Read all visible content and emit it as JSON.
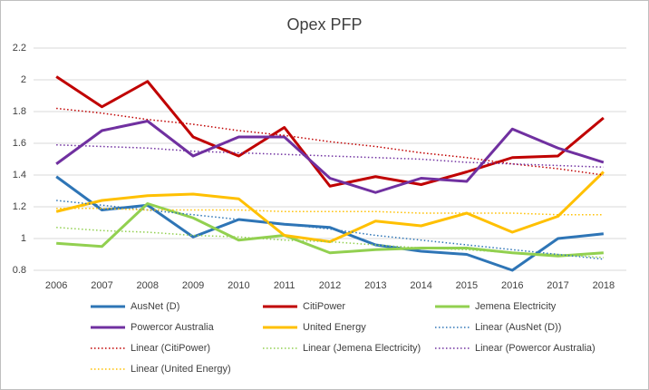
{
  "chart_data": {
    "type": "line",
    "title": "Opex PFP",
    "categories": [
      "2006",
      "2007",
      "2008",
      "2009",
      "2010",
      "2011",
      "2012",
      "2013",
      "2014",
      "2015",
      "2016",
      "2017",
      "2018"
    ],
    "ylim": [
      0.8,
      2.2
    ],
    "yticks": [
      0.8,
      1,
      1.2,
      1.4,
      1.6,
      1.8,
      2,
      2.2
    ],
    "grid": true,
    "legend": "bottom",
    "series": [
      {
        "name": "AusNet (D)",
        "color": "#2e75b6",
        "dash": "solid",
        "values": [
          1.39,
          1.18,
          1.21,
          1.01,
          1.12,
          1.09,
          1.07,
          0.96,
          0.92,
          0.9,
          0.8,
          1.0,
          1.03
        ]
      },
      {
        "name": "CitiPower",
        "color": "#c00000",
        "dash": "solid",
        "values": [
          2.02,
          1.83,
          1.99,
          1.64,
          1.52,
          1.7,
          1.33,
          1.39,
          1.34,
          1.42,
          1.51,
          1.52,
          1.76
        ]
      },
      {
        "name": "Jemena Electricity",
        "color": "#92d050",
        "dash": "solid",
        "values": [
          0.97,
          0.95,
          1.22,
          1.13,
          0.99,
          1.02,
          0.91,
          0.93,
          0.94,
          0.94,
          0.91,
          0.89,
          0.91
        ]
      },
      {
        "name": "Powercor Australia",
        "color": "#7030a0",
        "dash": "solid",
        "values": [
          1.47,
          1.68,
          1.74,
          1.52,
          1.64,
          1.64,
          1.38,
          1.29,
          1.38,
          1.36,
          1.69,
          1.57,
          1.48
        ]
      },
      {
        "name": "United Energy",
        "color": "#ffc000",
        "dash": "solid",
        "values": [
          1.17,
          1.24,
          1.27,
          1.28,
          1.25,
          1.02,
          0.98,
          1.11,
          1.08,
          1.16,
          1.04,
          1.14,
          1.42
        ]
      },
      {
        "name": "Linear (AusNet (D))",
        "color": "#2e75b6",
        "dash": "dotted",
        "values": [
          1.24,
          1.21,
          1.18,
          1.15,
          1.12,
          1.09,
          1.06,
          1.02,
          0.99,
          0.96,
          0.93,
          0.9,
          0.87
        ]
      },
      {
        "name": "Linear (CitiPower)",
        "color": "#c00000",
        "dash": "dotted",
        "values": [
          1.82,
          1.79,
          1.75,
          1.72,
          1.68,
          1.65,
          1.61,
          1.58,
          1.54,
          1.51,
          1.47,
          1.44,
          1.4
        ]
      },
      {
        "name": "Linear (Jemena Electricity)",
        "color": "#92d050",
        "dash": "dotted",
        "values": [
          1.07,
          1.05,
          1.04,
          1.02,
          1.01,
          0.99,
          0.98,
          0.96,
          0.94,
          0.93,
          0.91,
          0.9,
          0.88
        ]
      },
      {
        "name": "Linear (Powercor Australia)",
        "color": "#7030a0",
        "dash": "dotted",
        "values": [
          1.59,
          1.58,
          1.57,
          1.55,
          1.54,
          1.53,
          1.52,
          1.51,
          1.5,
          1.48,
          1.47,
          1.46,
          1.45
        ]
      },
      {
        "name": "Linear (United Energy)",
        "color": "#ffc000",
        "dash": "dotted",
        "values": [
          1.19,
          1.19,
          1.18,
          1.18,
          1.18,
          1.17,
          1.17,
          1.17,
          1.16,
          1.16,
          1.16,
          1.15,
          1.15
        ]
      }
    ]
  }
}
